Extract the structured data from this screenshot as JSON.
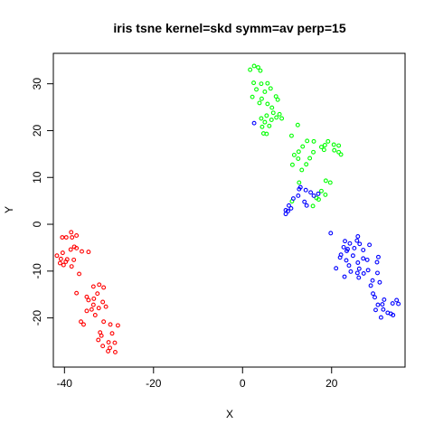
{
  "chart_data": {
    "type": "scatter",
    "title": "iris tsne kernel=skd symm=av perp=15",
    "xlabel": "X",
    "ylabel": "Y",
    "xlim": [
      -42.5,
      36.5
    ],
    "ylim": [
      -30.5,
      36.5
    ],
    "x_ticks": [
      -40,
      -20,
      0,
      20
    ],
    "y_ticks": [
      -20,
      -10,
      0,
      10,
      20,
      30
    ],
    "x_tick_labels": [
      "-40",
      "-20",
      "0",
      "20"
    ],
    "y_tick_labels": [
      "-20",
      "-10",
      "0",
      "10",
      "20",
      "30"
    ],
    "grid": false,
    "marker": "open-circle",
    "series": [
      {
        "color": "#ff0000",
        "points": [
          [
            -38.5,
            -1.7
          ],
          [
            -37.3,
            -2.4
          ],
          [
            -38.3,
            -2.8
          ],
          [
            -39.6,
            -2.8
          ],
          [
            -40.5,
            -2.8
          ],
          [
            -37.8,
            -4.8
          ],
          [
            -38.6,
            -5.4
          ],
          [
            -37.3,
            -5.1
          ],
          [
            -34.6,
            -5.9
          ],
          [
            -36.1,
            -5.8
          ],
          [
            -40.4,
            -6.1
          ],
          [
            -41.7,
            -6.7
          ],
          [
            -40.8,
            -7.4
          ],
          [
            -39.4,
            -7.5
          ],
          [
            -37.9,
            -7.6
          ],
          [
            -39.7,
            -8.0
          ],
          [
            -41.0,
            -8.3
          ],
          [
            -40.2,
            -8.7
          ],
          [
            -38.4,
            -9.0
          ],
          [
            -36.7,
            -10.6
          ],
          [
            -32.2,
            -12.9
          ],
          [
            -33.5,
            -13.3
          ],
          [
            -31.2,
            -13.5
          ],
          [
            -32.6,
            -14.8
          ],
          [
            -37.3,
            -14.7
          ],
          [
            -35.0,
            -15.5
          ],
          [
            -33.4,
            -15.9
          ],
          [
            -34.6,
            -16.2
          ],
          [
            -31.4,
            -16.6
          ],
          [
            -33.5,
            -17.2
          ],
          [
            -32.3,
            -17.9
          ],
          [
            -30.7,
            -17.6
          ],
          [
            -33.9,
            -18.2
          ],
          [
            -35.0,
            -18.5
          ],
          [
            -33.1,
            -19.4
          ],
          [
            -36.3,
            -20.8
          ],
          [
            -35.7,
            -21.4
          ],
          [
            -31.2,
            -20.8
          ],
          [
            -29.7,
            -21.4
          ],
          [
            -28.0,
            -21.6
          ],
          [
            -32.0,
            -23.1
          ],
          [
            -31.7,
            -23.8
          ],
          [
            -29.3,
            -23.3
          ],
          [
            -32.4,
            -24.7
          ],
          [
            -30.1,
            -25.2
          ],
          [
            -28.7,
            -25.3
          ],
          [
            -31.4,
            -26.0
          ],
          [
            -29.8,
            -26.4
          ],
          [
            -30.2,
            -27.1
          ],
          [
            -28.6,
            -27.3
          ]
        ]
      },
      {
        "color": "#00ff00",
        "points": [
          [
            2.6,
            33.8
          ],
          [
            3.5,
            33.5
          ],
          [
            1.7,
            33.0
          ],
          [
            4.0,
            32.8
          ],
          [
            2.5,
            30.2
          ],
          [
            4.2,
            30.0
          ],
          [
            5.6,
            30.1
          ],
          [
            3.1,
            28.8
          ],
          [
            6.3,
            29.0
          ],
          [
            5.0,
            28.3
          ],
          [
            2.2,
            27.2
          ],
          [
            4.3,
            26.8
          ],
          [
            7.5,
            27.3
          ],
          [
            7.9,
            26.6
          ],
          [
            3.8,
            25.9
          ],
          [
            5.6,
            25.7
          ],
          [
            6.6,
            24.9
          ],
          [
            6.9,
            23.8
          ],
          [
            8.3,
            23.5
          ],
          [
            5.4,
            23.2
          ],
          [
            8.8,
            22.6
          ],
          [
            7.6,
            22.8
          ],
          [
            6.5,
            22.3
          ],
          [
            4.2,
            22.6
          ],
          [
            5.0,
            21.8
          ],
          [
            4.4,
            20.8
          ],
          [
            6.0,
            21.0
          ],
          [
            12.4,
            21.2
          ],
          [
            5.4,
            19.3
          ],
          [
            4.7,
            19.4
          ],
          [
            11.0,
            18.9
          ],
          [
            14.5,
            17.8
          ],
          [
            16.0,
            17.7
          ],
          [
            19.2,
            17.7
          ],
          [
            18.5,
            16.9
          ],
          [
            20.5,
            17.0
          ],
          [
            13.5,
            16.6
          ],
          [
            17.7,
            16.5
          ],
          [
            21.6,
            16.8
          ],
          [
            18.3,
            15.9
          ],
          [
            12.6,
            15.5
          ],
          [
            15.9,
            15.4
          ],
          [
            20.6,
            15.8
          ],
          [
            21.6,
            15.4
          ],
          [
            11.6,
            14.8
          ],
          [
            12.5,
            14.0
          ],
          [
            15.1,
            14.1
          ],
          [
            22.1,
            14.9
          ],
          [
            14.3,
            12.8
          ],
          [
            11.2,
            12.7
          ],
          [
            13.3,
            11.6
          ],
          [
            18.7,
            9.3
          ],
          [
            19.7,
            8.9
          ],
          [
            12.7,
            8.9
          ],
          [
            17.7,
            7.1
          ],
          [
            18.6,
            6.3
          ],
          [
            16.6,
            5.6
          ],
          [
            17.1,
            5.3
          ],
          [
            11.1,
            4.9
          ],
          [
            15.8,
            3.9
          ]
        ]
      },
      {
        "color": "#0000ff",
        "points": [
          [
            2.6,
            21.6
          ],
          [
            13.0,
            7.9
          ],
          [
            14.2,
            7.3
          ],
          [
            12.7,
            7.5
          ],
          [
            15.3,
            6.8
          ],
          [
            17.0,
            6.5
          ],
          [
            12.5,
            6.1
          ],
          [
            16.0,
            6.1
          ],
          [
            11.4,
            5.5
          ],
          [
            13.9,
            4.8
          ],
          [
            14.4,
            4.0
          ],
          [
            10.4,
            4.0
          ],
          [
            9.7,
            3.0
          ],
          [
            10.9,
            3.4
          ],
          [
            10.2,
            2.8
          ],
          [
            9.7,
            2.2
          ],
          [
            19.8,
            -1.9
          ],
          [
            25.9,
            -2.6
          ],
          [
            23.0,
            -3.6
          ],
          [
            25.7,
            -3.5
          ],
          [
            24.1,
            -4.1
          ],
          [
            28.5,
            -4.4
          ],
          [
            26.3,
            -4.2
          ],
          [
            22.7,
            -4.9
          ],
          [
            25.1,
            -5.1
          ],
          [
            23.6,
            -5.3
          ],
          [
            27.1,
            -5.5
          ],
          [
            23.4,
            -5.7
          ],
          [
            22.1,
            -6.5
          ],
          [
            24.8,
            -6.7
          ],
          [
            21.9,
            -7.1
          ],
          [
            27.1,
            -7.3
          ],
          [
            30.5,
            -7.0
          ],
          [
            23.3,
            -7.7
          ],
          [
            28.0,
            -7.6
          ],
          [
            25.9,
            -8.2
          ],
          [
            30.2,
            -8.1
          ],
          [
            23.9,
            -8.8
          ],
          [
            26.2,
            -9.5
          ],
          [
            21.0,
            -9.4
          ],
          [
            28.2,
            -9.8
          ],
          [
            24.3,
            -10.1
          ],
          [
            30.3,
            -10.4
          ],
          [
            25.8,
            -10.4
          ],
          [
            27.2,
            -10.5
          ],
          [
            26.1,
            -11.4
          ],
          [
            22.9,
            -11.2
          ],
          [
            29.2,
            -12.0
          ],
          [
            30.8,
            -12.4
          ],
          [
            28.8,
            -13.1
          ],
          [
            29.3,
            -14.8
          ],
          [
            29.7,
            -15.6
          ],
          [
            31.8,
            -16.1
          ],
          [
            34.6,
            -16.2
          ],
          [
            33.7,
            -16.9
          ],
          [
            31.4,
            -17.1
          ],
          [
            35.0,
            -17.0
          ],
          [
            30.4,
            -17.2
          ],
          [
            29.9,
            -18.3
          ],
          [
            31.6,
            -18.2
          ],
          [
            32.6,
            -18.9
          ],
          [
            33.3,
            -19.1
          ],
          [
            33.8,
            -19.4
          ],
          [
            31.1,
            -19.9
          ]
        ]
      }
    ]
  }
}
